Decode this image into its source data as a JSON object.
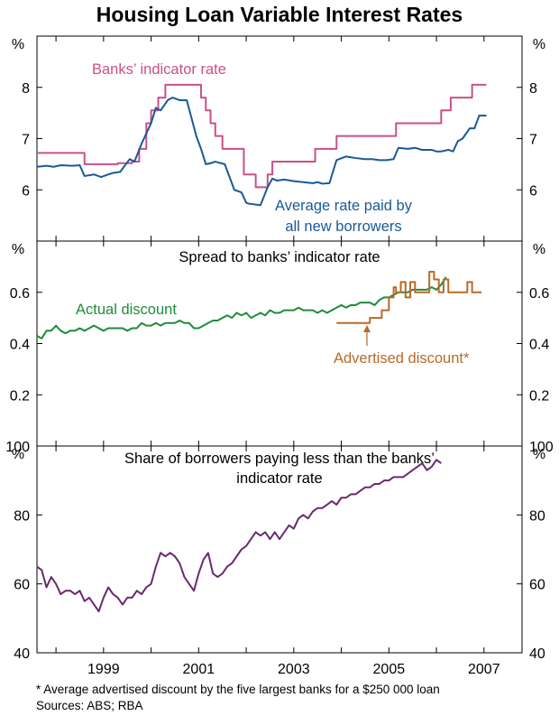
{
  "title": "Housing Loan Variable Interest Rates",
  "footnote": "*     Average advertised discount by the five largest banks for a $250 000 loan",
  "sources": "Sources: ABS; RBA",
  "colors": {
    "indicator": "#c8508a",
    "average": "#1a5a96",
    "actual": "#1e8c3c",
    "advertised": "#b86a28",
    "share": "#6a2a6e",
    "grid": "#9a9a9a",
    "frame": "#000000"
  },
  "chart_data": [
    {
      "type": "line",
      "panel": "top",
      "unit_label": "%",
      "ylim": [
        5,
        9
      ],
      "yticks": [
        6,
        7,
        8
      ],
      "xlim": [
        1997.6,
        2007.8
      ],
      "series": [
        {
          "name": "Banks’ indicator rate",
          "step": true,
          "x": [
            1997.6,
            1998.5,
            1998.6,
            1998.8,
            1999.2,
            1999.3,
            1999.6,
            1999.75,
            1999.9,
            2000.0,
            2000.15,
            2000.3,
            2000.55,
            2001.0,
            2001.05,
            2001.15,
            2001.25,
            2001.35,
            2001.5,
            2001.8,
            2001.95,
            2002.2,
            2002.45,
            2002.55,
            2003.3,
            2003.45,
            2003.9,
            2004.0,
            2005.15,
            2005.3,
            2006.1,
            2006.3,
            2006.6,
            2006.75,
            2006.85,
            2007.05
          ],
          "values": [
            6.72,
            6.72,
            6.5,
            6.5,
            6.5,
            6.52,
            6.55,
            6.8,
            7.3,
            7.55,
            7.8,
            8.05,
            8.05,
            8.05,
            7.8,
            7.55,
            7.3,
            7.05,
            6.8,
            6.8,
            6.3,
            6.05,
            6.3,
            6.55,
            6.55,
            6.8,
            7.05,
            7.05,
            7.3,
            7.3,
            7.55,
            7.8,
            7.8,
            8.05,
            8.05,
            8.05
          ]
        },
        {
          "name": "Average rate paid by all new borrowers",
          "x": [
            1997.6,
            1997.8,
            1997.95,
            1998.1,
            1998.35,
            1998.5,
            1998.6,
            1998.8,
            1998.95,
            1999.1,
            1999.2,
            1999.35,
            1999.55,
            1999.65,
            1999.8,
            1999.9,
            2000.0,
            2000.1,
            2000.2,
            2000.35,
            2000.45,
            2000.6,
            2000.75,
            2000.85,
            2000.95,
            2001.05,
            2001.15,
            2001.25,
            2001.35,
            2001.55,
            2001.75,
            2001.9,
            2002.0,
            2002.05,
            2002.3,
            2002.45,
            2002.55,
            2002.65,
            2002.8,
            2003.0,
            2003.2,
            2003.4,
            2003.5,
            2003.6,
            2003.75,
            2003.9,
            2004.1,
            2004.3,
            2004.5,
            2004.65,
            2004.8,
            2004.95,
            2005.1,
            2005.2,
            2005.4,
            2005.55,
            2005.7,
            2005.9,
            2006.0,
            2006.1,
            2006.25,
            2006.35,
            2006.45,
            2006.55,
            2006.7,
            2006.8,
            2006.9,
            2007.05
          ],
          "values": [
            6.45,
            6.47,
            6.45,
            6.48,
            6.47,
            6.48,
            6.27,
            6.3,
            6.25,
            6.3,
            6.33,
            6.35,
            6.6,
            6.55,
            6.9,
            7.1,
            7.3,
            7.6,
            7.55,
            7.75,
            7.8,
            7.75,
            7.75,
            7.4,
            7.05,
            6.8,
            6.5,
            6.52,
            6.55,
            6.5,
            6.0,
            5.95,
            5.75,
            5.73,
            5.7,
            6.05,
            6.22,
            6.18,
            6.2,
            6.17,
            6.15,
            6.13,
            6.15,
            6.12,
            6.13,
            6.58,
            6.65,
            6.62,
            6.6,
            6.6,
            6.58,
            6.58,
            6.6,
            6.82,
            6.8,
            6.82,
            6.78,
            6.78,
            6.75,
            6.75,
            6.78,
            6.75,
            6.95,
            7.0,
            7.2,
            7.2,
            7.45,
            7.45
          ]
        }
      ],
      "annotations": [
        "Banks’ indicator rate",
        "Average rate paid by",
        "all new borrowers"
      ]
    },
    {
      "type": "line",
      "panel": "middle",
      "title": "Spread to banks’ indicator rate",
      "unit_label": "%",
      "ylim": [
        0,
        0.8
      ],
      "yticks": [
        0.2,
        0.4,
        0.6
      ],
      "xlim": [
        1997.6,
        2007.8
      ],
      "series": [
        {
          "name": "Actual discount",
          "x": [
            1997.6,
            1997.7,
            1997.8,
            1997.9,
            1998.0,
            1998.1,
            1998.2,
            1998.3,
            1998.4,
            1998.5,
            1998.6,
            1998.7,
            1998.8,
            1998.9,
            1999.0,
            1999.1,
            1999.2,
            1999.3,
            1999.4,
            1999.5,
            1999.6,
            1999.7,
            1999.8,
            1999.9,
            2000.0,
            2000.1,
            2000.2,
            2000.3,
            2000.4,
            2000.5,
            2000.6,
            2000.7,
            2000.8,
            2000.9,
            2001.0,
            2001.1,
            2001.2,
            2001.3,
            2001.4,
            2001.5,
            2001.6,
            2001.7,
            2001.8,
            2001.9,
            2002.0,
            2002.1,
            2002.2,
            2002.3,
            2002.4,
            2002.5,
            2002.6,
            2002.7,
            2002.8,
            2002.9,
            2003.0,
            2003.1,
            2003.2,
            2003.3,
            2003.4,
            2003.5,
            2003.6,
            2003.7,
            2003.8,
            2003.9,
            2004.0,
            2004.1,
            2004.2,
            2004.3,
            2004.4,
            2004.5,
            2004.6,
            2004.7,
            2004.8,
            2004.9,
            2005.0,
            2005.1,
            2005.2,
            2005.3,
            2005.4,
            2005.5,
            2005.6,
            2005.7,
            2005.8,
            2005.9,
            2006.0,
            2006.1,
            2006.2
          ],
          "values": [
            0.43,
            0.42,
            0.45,
            0.45,
            0.47,
            0.45,
            0.44,
            0.45,
            0.45,
            0.46,
            0.45,
            0.46,
            0.47,
            0.46,
            0.45,
            0.46,
            0.46,
            0.46,
            0.46,
            0.45,
            0.46,
            0.46,
            0.48,
            0.47,
            0.47,
            0.48,
            0.47,
            0.48,
            0.48,
            0.48,
            0.49,
            0.48,
            0.48,
            0.46,
            0.46,
            0.47,
            0.48,
            0.49,
            0.49,
            0.5,
            0.51,
            0.5,
            0.52,
            0.51,
            0.52,
            0.5,
            0.51,
            0.52,
            0.51,
            0.53,
            0.52,
            0.52,
            0.53,
            0.53,
            0.53,
            0.54,
            0.53,
            0.53,
            0.53,
            0.52,
            0.53,
            0.52,
            0.53,
            0.54,
            0.55,
            0.54,
            0.55,
            0.55,
            0.56,
            0.56,
            0.56,
            0.55,
            0.57,
            0.58,
            0.58,
            0.59,
            0.6,
            0.6,
            0.6,
            0.61,
            0.61,
            0.61,
            0.61,
            0.62,
            0.61,
            0.63,
            0.66
          ]
        },
        {
          "name": "Advertised discount*",
          "step": true,
          "x": [
            2003.9,
            2004.4,
            2004.6,
            2004.75,
            2004.85,
            2005.0,
            2005.1,
            2005.15,
            2005.25,
            2005.35,
            2005.45,
            2005.55,
            2005.65,
            2005.75,
            2005.85,
            2005.95,
            2006.05,
            2006.15,
            2006.25,
            2006.35,
            2006.45,
            2006.55,
            2006.65,
            2006.75,
            2006.85,
            2006.95
          ],
          "values": [
            0.48,
            0.48,
            0.5,
            0.5,
            0.53,
            0.58,
            0.62,
            0.6,
            0.64,
            0.58,
            0.64,
            0.6,
            0.6,
            0.6,
            0.68,
            0.65,
            0.6,
            0.65,
            0.6,
            0.6,
            0.6,
            0.6,
            0.64,
            0.6,
            0.6,
            0.6
          ]
        }
      ],
      "annotations": [
        "Actual discount",
        "Advertised discount*"
      ]
    },
    {
      "type": "line",
      "panel": "bottom",
      "title": "Share of borrowers paying less than the banks’ indicator rate",
      "title_lines": [
        "Share of borrowers paying less than the banks’",
        "indicator rate"
      ],
      "unit_label": "%",
      "ylim": [
        40,
        100
      ],
      "ytick_labels": [
        40,
        60,
        80,
        100
      ],
      "xlim": [
        1997.6,
        2007.8
      ],
      "xtick_labels": [
        "1999",
        "2001",
        "2003",
        "2005",
        "2007"
      ],
      "series": [
        {
          "name": "Share of borrowers",
          "x": [
            1997.6,
            1997.7,
            1997.8,
            1997.9,
            1998.0,
            1998.1,
            1998.2,
            1998.3,
            1998.4,
            1998.5,
            1998.6,
            1998.7,
            1998.8,
            1998.9,
            1999.0,
            1999.1,
            1999.2,
            1999.3,
            1999.4,
            1999.5,
            1999.6,
            1999.7,
            1999.8,
            1999.9,
            2000.0,
            2000.1,
            2000.2,
            2000.3,
            2000.4,
            2000.5,
            2000.6,
            2000.7,
            2000.8,
            2000.9,
            2001.0,
            2001.1,
            2001.2,
            2001.3,
            2001.4,
            2001.5,
            2001.6,
            2001.7,
            2001.8,
            2001.9,
            2002.0,
            2002.1,
            2002.2,
            2002.3,
            2002.4,
            2002.5,
            2002.6,
            2002.7,
            2002.8,
            2002.9,
            2003.0,
            2003.1,
            2003.2,
            2003.3,
            2003.4,
            2003.5,
            2003.6,
            2003.7,
            2003.8,
            2003.9,
            2004.0,
            2004.1,
            2004.2,
            2004.3,
            2004.4,
            2004.5,
            2004.6,
            2004.7,
            2004.8,
            2004.9,
            2005.0,
            2005.1,
            2005.2,
            2005.3,
            2005.4,
            2005.5,
            2005.6,
            2005.7,
            2005.8,
            2005.9,
            2006.0,
            2006.1
          ],
          "values": [
            65,
            64,
            59,
            62,
            60,
            57,
            58,
            58,
            57,
            58,
            55,
            56,
            54,
            52,
            56,
            59,
            57,
            56,
            54,
            56,
            56,
            58,
            57,
            59,
            60,
            65,
            69,
            68,
            69,
            68,
            66,
            62,
            60,
            58,
            63,
            67,
            69,
            63,
            62,
            63,
            65,
            66,
            68,
            70,
            71,
            73,
            75,
            74,
            75,
            73,
            75,
            73,
            75,
            77,
            76,
            79,
            80,
            79,
            81,
            82,
            82,
            83,
            84,
            83,
            85,
            85,
            86,
            86,
            87,
            88,
            88,
            89,
            89,
            90,
            90,
            91,
            91,
            91,
            92,
            93,
            94,
            95,
            93,
            94,
            96,
            95
          ]
        }
      ]
    }
  ]
}
